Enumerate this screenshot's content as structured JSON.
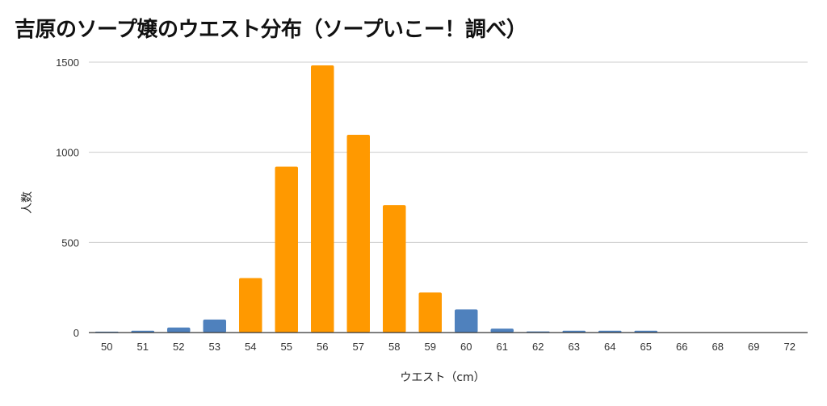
{
  "chart_data": {
    "type": "bar",
    "title": "吉原のソープ嬢のウエスト分布（ソープいこー！調べ）",
    "xlabel": "ウエスト（cm）",
    "ylabel": "人数",
    "categories": [
      "50",
      "51",
      "52",
      "53",
      "54",
      "55",
      "56",
      "57",
      "58",
      "59",
      "60",
      "61",
      "62",
      "63",
      "64",
      "65",
      "66",
      "68",
      "69",
      "72"
    ],
    "values": [
      5,
      10,
      28,
      72,
      302,
      920,
      1482,
      1097,
      707,
      222,
      128,
      22,
      6,
      10,
      10,
      10,
      0,
      0,
      0,
      0
    ],
    "highlight": [
      false,
      false,
      false,
      false,
      true,
      true,
      true,
      true,
      true,
      true,
      false,
      false,
      false,
      false,
      false,
      false,
      false,
      false,
      false,
      false
    ],
    "ylim": [
      0,
      1500
    ],
    "yticks": [
      0,
      500,
      1000,
      1500
    ],
    "grid": true,
    "legend": "none",
    "colors": {
      "default": "#4f81bd",
      "highlight": "#ff9900",
      "grid": "#cccccc",
      "axis": "#333333"
    }
  }
}
